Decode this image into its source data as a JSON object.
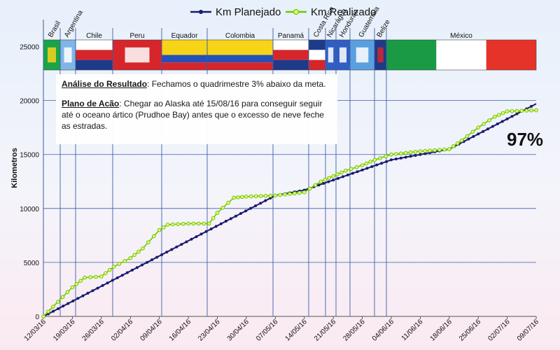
{
  "chart_data": {
    "type": "line",
    "ylabel": "Kilometros",
    "ylim": [
      0,
      27500
    ],
    "yticks": [
      0,
      5000,
      10000,
      15000,
      20000,
      25000
    ],
    "xticks": [
      "12/03/16",
      "19/03/16",
      "26/03/16",
      "02/04/16",
      "09/04/16",
      "16/04/16",
      "23/04/16",
      "30/04/16",
      "07/05/16",
      "14/05/16",
      "21/05/16",
      "28/05/16",
      "04/06/16",
      "11/06/16",
      "18/06/16",
      "25/06/16",
      "02/07/16",
      "09/07/16"
    ],
    "grid": true,
    "legend": "top-center",
    "series": [
      {
        "name": "Km Planejado",
        "color": "#1a1a6e",
        "points": [
          [
            "12/03/16",
            0
          ],
          [
            "07/05/16",
            11200
          ],
          [
            "14/05/16",
            11700
          ],
          [
            "04/06/16",
            14500
          ],
          [
            "18/06/16",
            15500
          ],
          [
            "09/07/16",
            19700
          ]
        ]
      },
      {
        "name": "Km Realizado",
        "color": "#66cc00",
        "points": [
          [
            "12/03/16",
            0
          ],
          [
            "19/03/16",
            2700
          ],
          [
            "22/03/16",
            3600
          ],
          [
            "26/03/16",
            3700
          ],
          [
            "29/03/16",
            4600
          ],
          [
            "02/04/16",
            5400
          ],
          [
            "05/04/16",
            6300
          ],
          [
            "09/04/16",
            8000
          ],
          [
            "11/04/16",
            8500
          ],
          [
            "16/04/16",
            8600
          ],
          [
            "21/04/16",
            8600
          ],
          [
            "23/04/16",
            9600
          ],
          [
            "27/04/16",
            11000
          ],
          [
            "30/04/16",
            11100
          ],
          [
            "07/05/16",
            11200
          ],
          [
            "14/05/16",
            11500
          ],
          [
            "18/05/16",
            12500
          ],
          [
            "21/05/16",
            13000
          ],
          [
            "24/05/16",
            13500
          ],
          [
            "28/05/16",
            14000
          ],
          [
            "31/05/16",
            14500
          ],
          [
            "04/06/16",
            15000
          ],
          [
            "11/06/16",
            15300
          ],
          [
            "18/06/16",
            15500
          ],
          [
            "21/06/16",
            16300
          ],
          [
            "25/06/16",
            17500
          ],
          [
            "29/06/16",
            18500
          ],
          [
            "02/07/16",
            19000
          ],
          [
            "09/07/16",
            19100
          ]
        ]
      }
    ],
    "countries": [
      "Brasil",
      "Argentina",
      "Chile",
      "Peru",
      "Equador",
      "Colombia",
      "Panamá",
      "Costa Rica",
      "Nicarágua",
      "Honduras",
      "Guatemala",
      "Belize",
      "México"
    ]
  },
  "annotation": {
    "analysis_label": "Análise do Resultado",
    "analysis_text": ": Fechamos o quadrimestre 3% abaixo da meta.",
    "plan_label": "Plano de Acão",
    "plan_text": ": Chegar ao Alaska até 15/08/16 para conseguir seguir até o oceano ártico (Prudhoe Bay) antes que o excesso de neve feche as estradas.",
    "percent": "97%"
  }
}
